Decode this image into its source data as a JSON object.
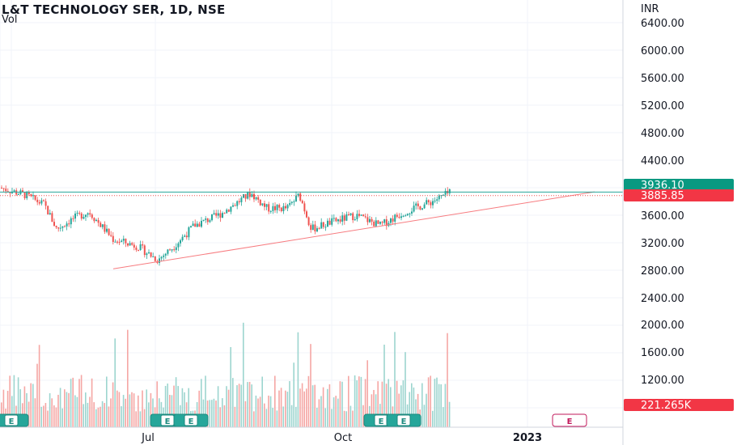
{
  "header": {
    "title": "L&T TECHNOLOGY SER, 1D, NSE",
    "volume_label": "Vol"
  },
  "colors": {
    "up": "#26a69a",
    "down": "#ef5350",
    "grid": "#f0f3fa",
    "axis_border": "#d1d4dc",
    "support_line": "#f77c80",
    "current_line": "#26a69a"
  },
  "chart_data": {
    "type": "candlestick",
    "currency": "INR",
    "y_ticks": [
      "6400.00",
      "6000.00",
      "5600.00",
      "5200.00",
      "4800.00",
      "4400.00",
      "3600.00",
      "3200.00",
      "2800.00",
      "2400.00",
      "2000.00",
      "1600.00",
      "1200.00"
    ],
    "ylim": [
      1000,
      6500
    ],
    "x_ticks": [
      "Jul",
      "Oct",
      "2023"
    ],
    "price_tags": [
      {
        "label": "3936.10",
        "value": 3936.1,
        "color": "#089981"
      },
      {
        "label": "3885.85",
        "value": 3885.85,
        "color": "#f23645"
      }
    ],
    "volume_tag": {
      "label": "221.265K",
      "color": "#f23645"
    },
    "trend_line": {
      "from": {
        "month": "2022-06-01",
        "price": 2820
      },
      "to": {
        "month": "2022-12-31",
        "price": 3940
      }
    },
    "current_price_line": 3936.1,
    "earnings_markers": [
      {
        "label": "E",
        "position": "start"
      },
      {
        "label": "E",
        "position": "july"
      },
      {
        "label": "E",
        "position": "july"
      },
      {
        "label": "E",
        "position": "october"
      },
      {
        "label": "E",
        "position": "october"
      },
      {
        "label": "E",
        "position": "future"
      }
    ]
  }
}
